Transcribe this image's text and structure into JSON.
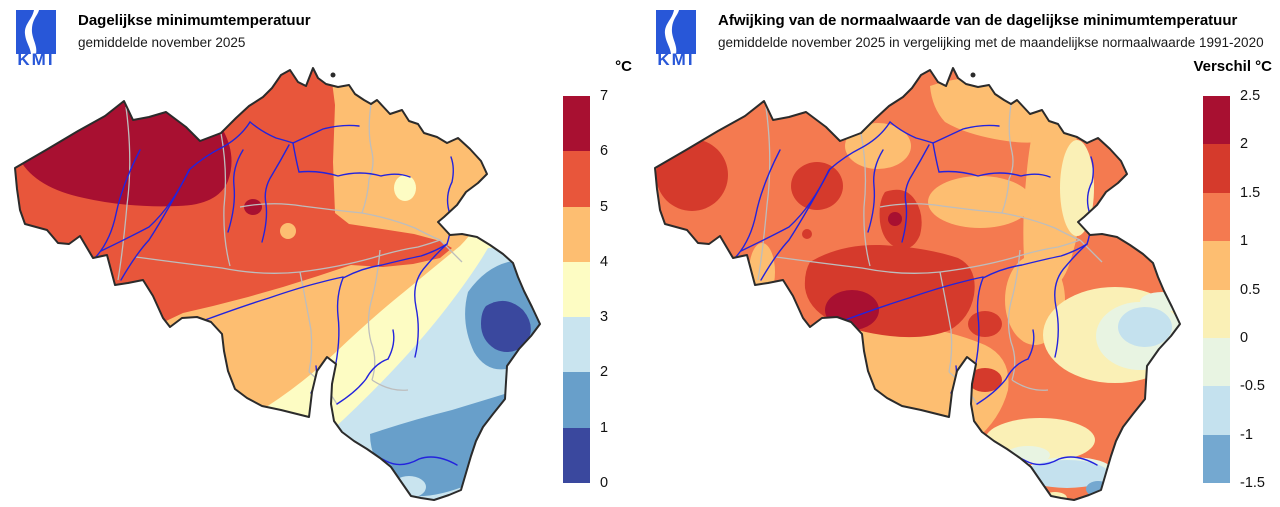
{
  "panels": [
    {
      "id": "tmin",
      "logo_text": "KMI",
      "title": "Dagelijkse minimumtemperatuur",
      "subtitle": "gemiddelde november 2025",
      "legend": {
        "unit_label": "°C",
        "tick_labels": [
          "7",
          "6",
          "5",
          "4",
          "3",
          "2",
          "1",
          "0"
        ],
        "colors": [
          "#a81031",
          "#e8563b",
          "#fdbe71",
          "#fdfcc3",
          "#c9e4ef",
          "#689fca",
          "#3a489e"
        ]
      }
    },
    {
      "id": "anomaly",
      "logo_text": "KMI",
      "title": "Afwijking van de normaalwaarde van de dagelijkse minimumtemperatuur",
      "subtitle": "gemiddelde november 2025 in vergelijking met de maandelijkse normaalwaarde 1991-2020",
      "legend": {
        "unit_label": "Verschil °C",
        "tick_labels": [
          "2.5",
          "2",
          "1.5",
          "1",
          "0.5",
          "0",
          "-0.5",
          "-1",
          "-1.5"
        ],
        "colors": [
          "#a81031",
          "#d53a2c",
          "#f47a50",
          "#fdbe71",
          "#faf0b6",
          "#e8f4e2",
          "#c4e1ee",
          "#74a8d0"
        ]
      }
    }
  ],
  "map_style": {
    "country_border_color": "#2b2b2b",
    "province_border_color": "#bdbdbd",
    "river_color": "#2323dd",
    "logo_color": "#2857d8"
  },
  "chart_data": [
    {
      "type": "map",
      "region": "België",
      "title": "Dagelijkse minimumtemperatuur",
      "subtitle": "gemiddelde november 2025",
      "unit": "°C",
      "scale_ticks": [
        7,
        6,
        5,
        4,
        3,
        2,
        1,
        0
      ],
      "bins": [
        {
          "range": "6 tot 7",
          "color": "#a81031",
          "where": "kust West-Vlaanderen, spot bij Brussel"
        },
        {
          "range": "5 tot 6",
          "color": "#e8563b",
          "where": "noordwesten en centrum, Samber-Maasvallei tot Luik"
        },
        {
          "range": "4 tot 5",
          "color": "#fdbe71",
          "where": "Kempen, Limburg, Henegouwen"
        },
        {
          "range": "3 tot 4",
          "color": "#fdfcc3",
          "where": "diagonale band over Condroz"
        },
        {
          "range": "2 tot 3",
          "color": "#c9e4ef",
          "where": "band over de Ardennen"
        },
        {
          "range": "1 tot 2",
          "color": "#689fca",
          "where": "zuidoosten en Hoge Venen"
        },
        {
          "range": "0 tot 1",
          "color": "#3a489e",
          "where": "vlek in het oosten (Hoge Venen)"
        }
      ]
    },
    {
      "type": "map",
      "region": "België",
      "title": "Afwijking van de normaalwaarde van de dagelijkse minimumtemperatuur",
      "subtitle": "gemiddelde november 2025 in vergelijking met de maandelijkse normaalwaarde 1991-2020",
      "unit": "Verschil °C",
      "scale_ticks": [
        2.5,
        2,
        1.5,
        1,
        0.5,
        0,
        -0.5,
        -1,
        -1.5
      ],
      "bins": [
        {
          "range": "2 tot 2.5",
          "color": "#a81031",
          "where": "kleine kernen ten zuiden van Brussel en bij Philippeville"
        },
        {
          "range": "1.5 tot 2",
          "color": "#d53a2c",
          "where": "West-Vlaanderen, Gent, Leuven, centraal-zuiden"
        },
        {
          "range": "1 tot 1.5",
          "color": "#f47a50",
          "where": "grootste deel van het land"
        },
        {
          "range": "0.5 tot 1",
          "color": "#fdbe71",
          "where": "Antwerpen, Kempen, zuiden"
        },
        {
          "range": "0 tot 0.5",
          "color": "#faf0b6",
          "where": "Limburg en het oosten"
        },
        {
          "range": "-0.5 tot 0",
          "color": "#e8f4e2",
          "where": "vlekken in het uiterste oosten"
        },
        {
          "range": "-1 tot -0.5",
          "color": "#c4e1ee",
          "where": "Hoge Venen en zuidpunt"
        },
        {
          "range": "-1.5 tot -1",
          "color": "#74a8d0",
          "where": "kleine vlek aan de zuidpunt"
        }
      ]
    }
  ]
}
